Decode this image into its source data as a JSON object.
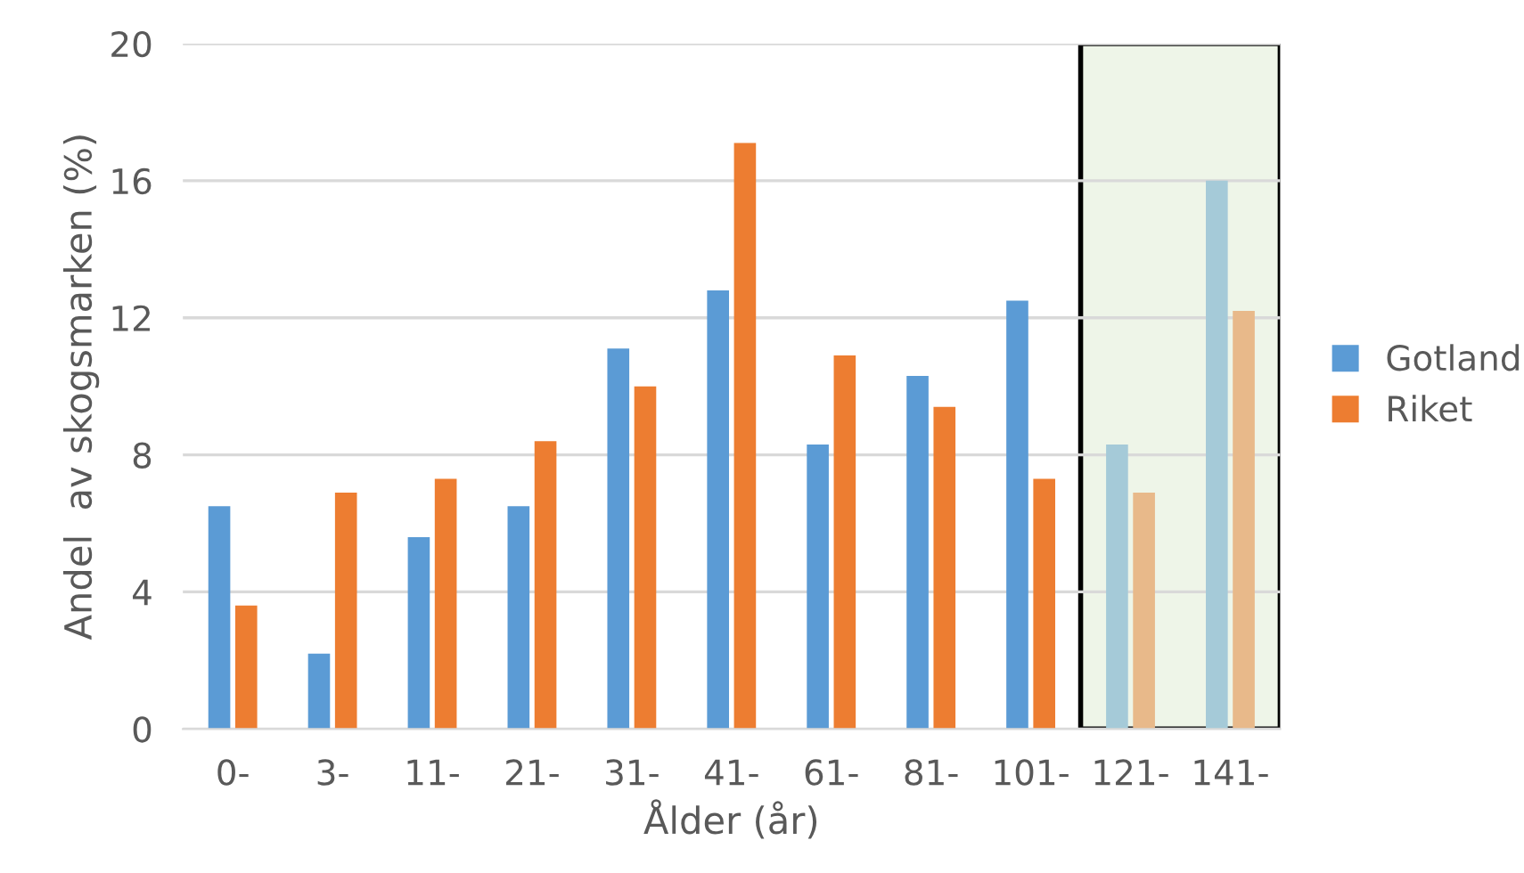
{
  "chart_data": {
    "type": "bar",
    "xlabel": "Ålder (år)",
    "ylabel": "Andel  av skogsmarken (%)",
    "categories": [
      "0-",
      "3-",
      "11-",
      "21-",
      "31-",
      "41-",
      "61-",
      "81-",
      "101-",
      "121-",
      "141-"
    ],
    "series": [
      {
        "name": "Gotland",
        "color": "#5b9bd5",
        "colors": [
          "#5b9bd5",
          "#5b9bd5",
          "#5b9bd5",
          "#5b9bd5",
          "#5b9bd5",
          "#5b9bd5",
          "#5b9bd5",
          "#5b9bd5",
          "#5b9bd5",
          "#a5cad8",
          "#a5cad8"
        ],
        "values": [
          6.5,
          2.2,
          5.6,
          6.5,
          11.1,
          12.8,
          8.3,
          10.3,
          12.5,
          8.3,
          16.0
        ]
      },
      {
        "name": "Riket",
        "color": "#ed7d31",
        "colors": [
          "#ed7d31",
          "#ed7d31",
          "#ed7d31",
          "#ed7d31",
          "#ed7d31",
          "#ed7d31",
          "#ed7d31",
          "#ed7d31",
          "#ed7d31",
          "#e8b98a",
          "#e8b98a"
        ],
        "values": [
          3.6,
          6.9,
          7.3,
          8.4,
          10.0,
          17.1,
          10.9,
          9.4,
          7.3,
          6.9,
          12.2
        ]
      }
    ],
    "bands": [
      {
        "axis": "x",
        "from": "121-",
        "to": "141-",
        "color": "#eef5e8"
      }
    ],
    "ylim": [
      0,
      20
    ],
    "yticks": [
      0,
      4,
      8,
      12,
      16,
      20
    ],
    "grid": "y",
    "legend": "right"
  }
}
